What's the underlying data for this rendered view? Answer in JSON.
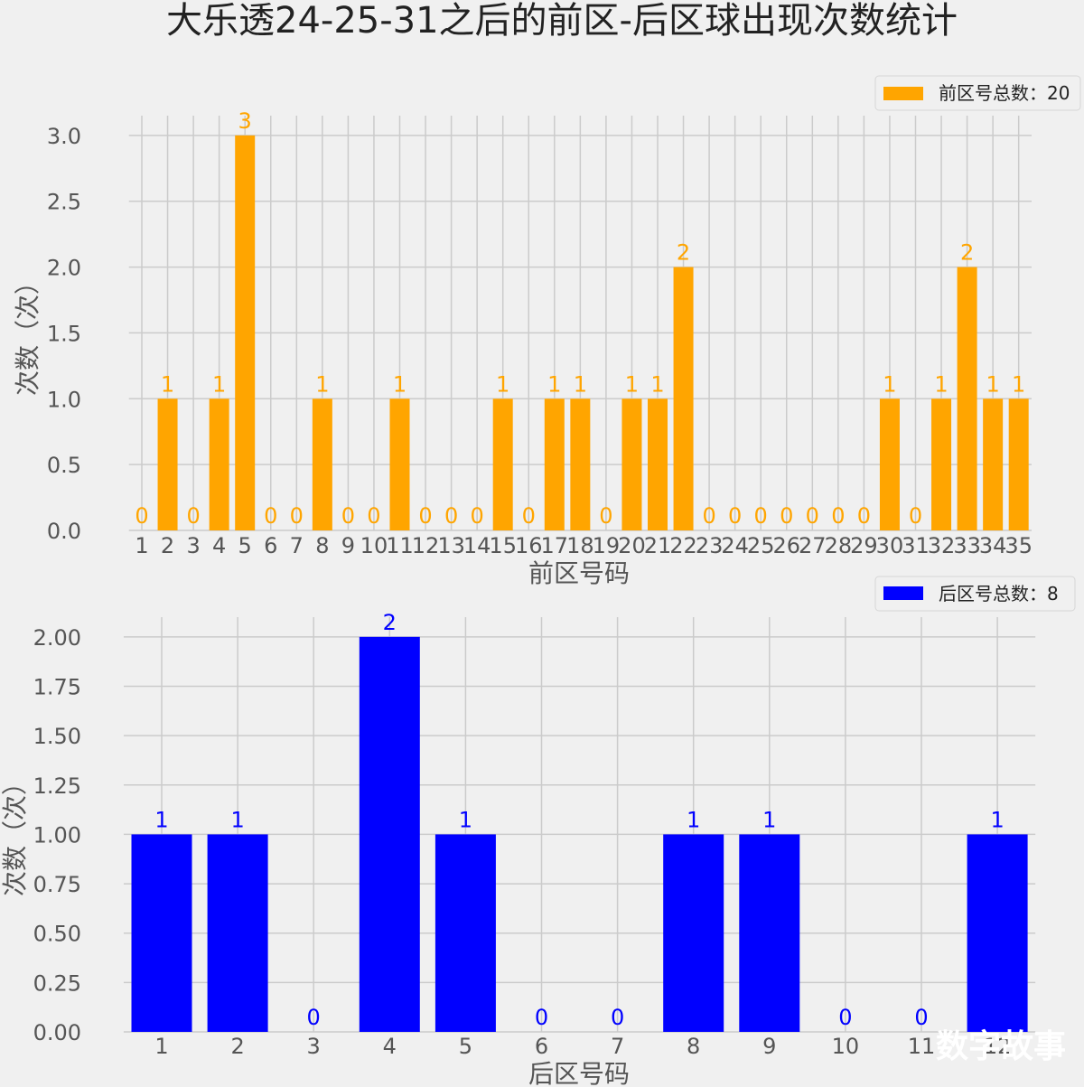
{
  "title": "大乐透24-25-31之后的前区-后区球出现次数统计",
  "watermark": "数字故事",
  "colors": {
    "front": "#ffa500",
    "back": "#0000ff",
    "background": "#f0f0f0",
    "grid": "#cbcbcb"
  },
  "chart_data": [
    {
      "type": "bar",
      "xlabel": "前区号码",
      "ylabel": "次数（次）",
      "legend": "前区号总数：20",
      "legend_position": "top-right",
      "grid": true,
      "color": "#ffa500",
      "ylim": [
        0,
        3.15
      ],
      "yticks": [
        "0.0",
        "0.5",
        "1.0",
        "1.5",
        "2.0",
        "2.5",
        "3.0"
      ],
      "categories": [
        "1",
        "2",
        "3",
        "4",
        "5",
        "6",
        "7",
        "8",
        "9",
        "10",
        "11",
        "12",
        "13",
        "14",
        "15",
        "16",
        "17",
        "18",
        "19",
        "20",
        "21",
        "22",
        "23",
        "24",
        "25",
        "26",
        "27",
        "28",
        "29",
        "30",
        "31",
        "32",
        "33",
        "34",
        "35"
      ],
      "values": [
        0,
        1,
        0,
        1,
        3,
        0,
        0,
        1,
        0,
        0,
        1,
        0,
        0,
        0,
        1,
        0,
        1,
        1,
        0,
        1,
        1,
        2,
        0,
        0,
        0,
        0,
        0,
        0,
        0,
        1,
        0,
        1,
        2,
        1,
        1
      ]
    },
    {
      "type": "bar",
      "xlabel": "后区号码",
      "ylabel": "次数（次）",
      "legend": "后区号总数：8",
      "legend_position": "top-right",
      "grid": true,
      "color": "#0000ff",
      "ylim": [
        0,
        2.1
      ],
      "yticks": [
        "0.00",
        "0.25",
        "0.50",
        "0.75",
        "1.00",
        "1.25",
        "1.50",
        "1.75",
        "2.00"
      ],
      "categories": [
        "1",
        "2",
        "3",
        "4",
        "5",
        "6",
        "7",
        "8",
        "9",
        "10",
        "11",
        "12"
      ],
      "values": [
        1,
        1,
        0,
        2,
        1,
        0,
        0,
        1,
        1,
        0,
        0,
        1
      ]
    }
  ]
}
